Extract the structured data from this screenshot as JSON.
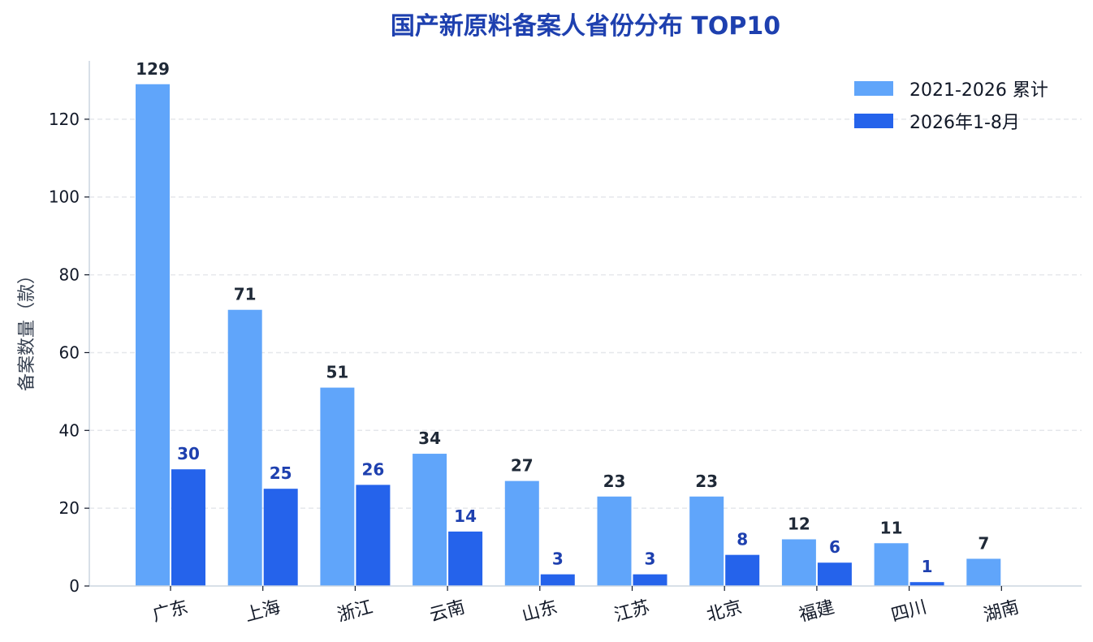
{
  "chart_data": {
    "type": "bar",
    "title": "国产新原料备案人省份分布 TOP10",
    "xlabel": "",
    "ylabel": "备案数量（款）",
    "categories": [
      "广东",
      "上海",
      "浙江",
      "云南",
      "山东",
      "江苏",
      "北京",
      "福建",
      "四川",
      "湖南"
    ],
    "series": [
      {
        "name": "2021-2026 累计",
        "values": [
          129,
          71,
          51,
          34,
          27,
          23,
          23,
          12,
          11,
          7
        ],
        "color": "#60a5fa"
      },
      {
        "name": "2026年1-8月",
        "values": [
          30,
          25,
          26,
          14,
          3,
          3,
          8,
          6,
          1,
          0
        ],
        "color": "#2563eb"
      }
    ],
    "ylim": [
      0,
      135
    ],
    "yticks": [
      0,
      20,
      40,
      60,
      80,
      100,
      120
    ],
    "grid": true,
    "legend": "top-right",
    "colors": {
      "title": "#1e40af",
      "total_label": "#1f2937",
      "recent_label": "#1e40af"
    }
  }
}
